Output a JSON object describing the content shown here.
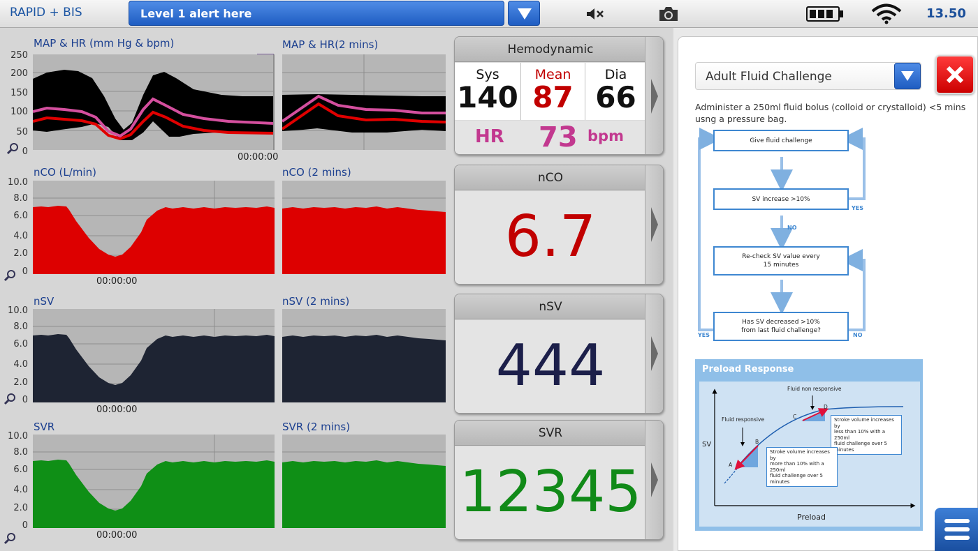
{
  "topbar": {
    "app_title": "RAPID + BIS",
    "alert_text": "Level 1 alert here",
    "time": "13.50",
    "icons": [
      "chevron-down-icon",
      "mute-icon",
      "camera-icon",
      "battery-icon",
      "wifi-icon"
    ]
  },
  "charts": {
    "map_hr": {
      "title": "MAP & HR (mm Hg & bpm)",
      "title_2min": "MAP & HR(2 mins)",
      "yticks": [
        "250",
        "200",
        "150",
        "100",
        "50",
        "0"
      ],
      "time": "00:00:00",
      "badge": "1"
    },
    "nco": {
      "title": "nCO (L/min)",
      "title_2min": "nCO (2 mins)",
      "yticks": [
        "10.0",
        "8.0",
        "6.0",
        "4.0",
        "2.0",
        "0"
      ],
      "time": "00:00:00",
      "color": "#dd0000"
    },
    "nsv": {
      "title": "nSV",
      "title_2min": "nSV (2 mins)",
      "yticks": [
        "10.0",
        "8.0",
        "6.0",
        "4.0",
        "2.0",
        "0"
      ],
      "time": "00:00:00",
      "color": "#1e2433"
    },
    "svr": {
      "title": "SVR",
      "title_2min": "SVR (2 mins)",
      "yticks": [
        "10.0",
        "8.0",
        "6.0",
        "4.0",
        "2.0",
        "0"
      ],
      "time": "00:00:00",
      "color": "#0f8f16"
    }
  },
  "cards": {
    "hemodynamic": {
      "title": "Hemodynamic",
      "sys_label": "Sys",
      "sys_value": "140",
      "mean_label": "Mean",
      "mean_value": "87",
      "dia_label": "Dia",
      "dia_value": "66",
      "hr_label": "HR",
      "hr_value": "73",
      "hr_unit": "bpm"
    },
    "nco": {
      "title": "nCO",
      "value": "6.7",
      "color": "#c10000"
    },
    "nsv": {
      "title": "nSV",
      "value": "444",
      "color": "#1c1f4a"
    },
    "svr": {
      "title": "SVR",
      "value": "12345",
      "color": "#118a18"
    }
  },
  "protocol": {
    "selected": "Adult Fluid Challenge",
    "instructions": "Administer a 250ml fluid bolus (colloid or crystalloid) <5 mins usng a pressure bag.",
    "flow": {
      "step1": "Give fluid challenge",
      "step2": "SV increase >10%",
      "step3_line1": "Re-check SV value every",
      "step3_line2": "15 minutes",
      "step4_line1": "Has SV decreased >10%",
      "step4_line2": "from last fluid challenge?",
      "yes_right": "YES",
      "no_mid": "NO",
      "yes_left": "YES",
      "no_right": "NO"
    },
    "preload": {
      "title": "Preload Response",
      "ylabel": "SV",
      "xlabel": "Preload",
      "fluid_non_responsive": "Fluid non responsive",
      "fluid_responsive": "Fluid responsive",
      "point_a": "A",
      "point_b": "B",
      "point_c": "C",
      "point_d": "D",
      "box_cd_l1": "Stroke volume increases by",
      "box_cd_l2": "less than 10% with a 250ml",
      "box_cd_l3": "fluid challenge over 5 minutes",
      "box_ab_l1": "Stroke volume increases by",
      "box_ab_l2": "more than 10% with a 250ml",
      "box_ab_l3": "fluid challenge over 5 minutes"
    }
  }
}
